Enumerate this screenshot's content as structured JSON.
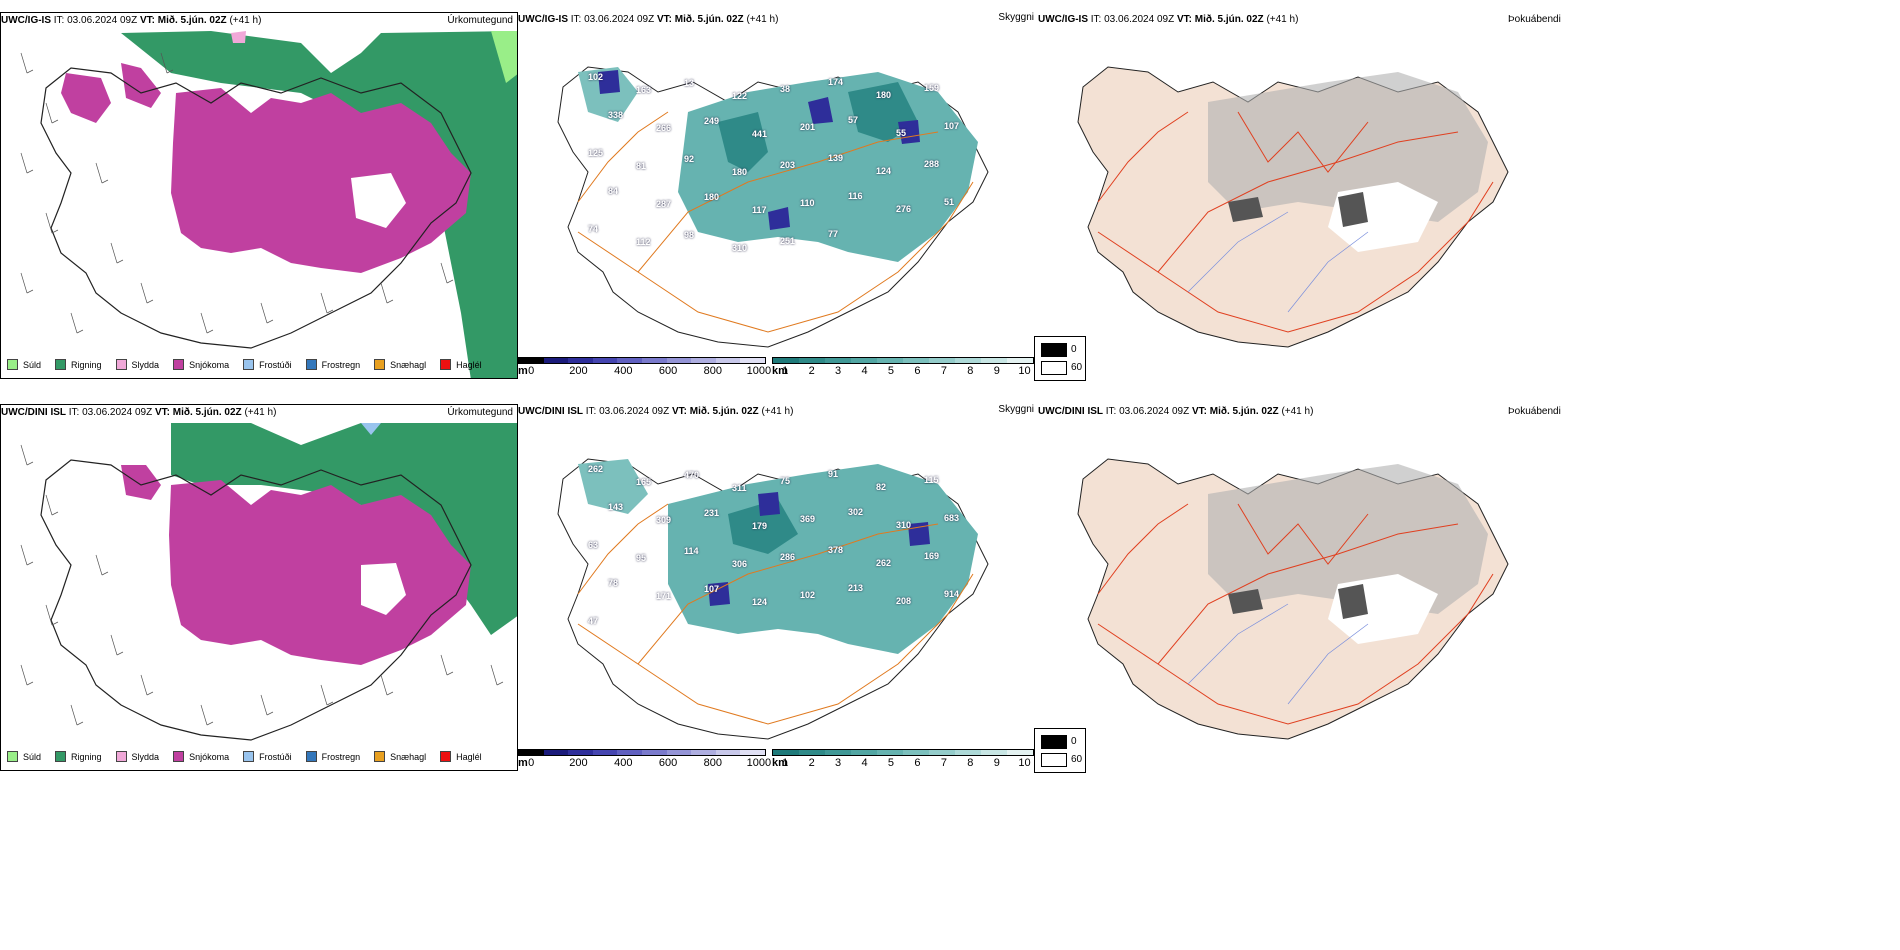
{
  "rows": [
    {
      "model": "UWC/IG-IS",
      "it_label": "IT:",
      "it_value": "03.06.2024 09Z",
      "vt_label": "VT:",
      "vt_value": "Mið. 5.jún. 02Z",
      "lead": "(+41 h)"
    },
    {
      "model": "UWC/DINI ISL",
      "it_label": "IT:",
      "it_value": "03.06.2024 09Z",
      "vt_label": "VT:",
      "vt_value": "Mið. 5.jún. 02Z",
      "lead": "(+41 h)"
    }
  ],
  "panel_titles": {
    "precip": "Úrkomutegund",
    "cloud": "Skyggni",
    "fog": "Þokuábendi"
  },
  "precip_legend": [
    {
      "label": "Súld",
      "color": "#99ee88"
    },
    {
      "label": "Rigning",
      "color": "#339966"
    },
    {
      "label": "Slydda",
      "color": "#f0a8d8"
    },
    {
      "label": "Snjókoma",
      "color": "#c040a0"
    },
    {
      "label": "Frostúði",
      "color": "#99c4ee"
    },
    {
      "label": "Frostregn",
      "color": "#3377bb"
    },
    {
      "label": "Snæhagl",
      "color": "#e8a020"
    },
    {
      "label": "Haglél",
      "color": "#ee1111"
    }
  ],
  "ceiling_bar": {
    "unit": "m",
    "ticks": [
      "0",
      "200",
      "400",
      "600",
      "800",
      "1000"
    ],
    "colors": [
      "#000000",
      "#1a1a7a",
      "#2e2e9a",
      "#4545b0",
      "#6060c0",
      "#7a7acc",
      "#9494d6",
      "#aeaee0",
      "#c8c8ea",
      "#e0e0f4"
    ]
  },
  "visibility_bar": {
    "unit": "km",
    "ticks": [
      "1",
      "2",
      "3",
      "4",
      "5",
      "6",
      "7",
      "8",
      "9",
      "10"
    ],
    "colors": [
      "#1f7a7a",
      "#2f8a88",
      "#409896",
      "#52a6a3",
      "#66b3b0",
      "#7cc0bd",
      "#94ccca",
      "#add9d7",
      "#c8e6e4",
      "#e4f2f1"
    ]
  },
  "cloud_legend": {
    "low": "0",
    "high": "60"
  },
  "label_sets": [
    [
      "102",
      "163",
      "13",
      "122",
      "38",
      "174",
      "180",
      "159",
      "338",
      "266",
      "249",
      "441",
      "201",
      "57",
      "55",
      "107",
      "125",
      "81",
      "92",
      "180",
      "203",
      "139",
      "124",
      "288",
      "84",
      "287",
      "180",
      "117",
      "110",
      "116",
      "276",
      "51",
      "74",
      "112",
      "98",
      "310",
      "251",
      "77"
    ],
    [
      "262",
      "165",
      "470",
      "311",
      "75",
      "91",
      "82",
      "115",
      "143",
      "309",
      "231",
      "179",
      "369",
      "302",
      "310",
      "683",
      "63",
      "95",
      "114",
      "306",
      "286",
      "378",
      "262",
      "169",
      "78",
      "171",
      "107",
      "124",
      "102",
      "213",
      "208",
      "914",
      "47"
    ]
  ]
}
